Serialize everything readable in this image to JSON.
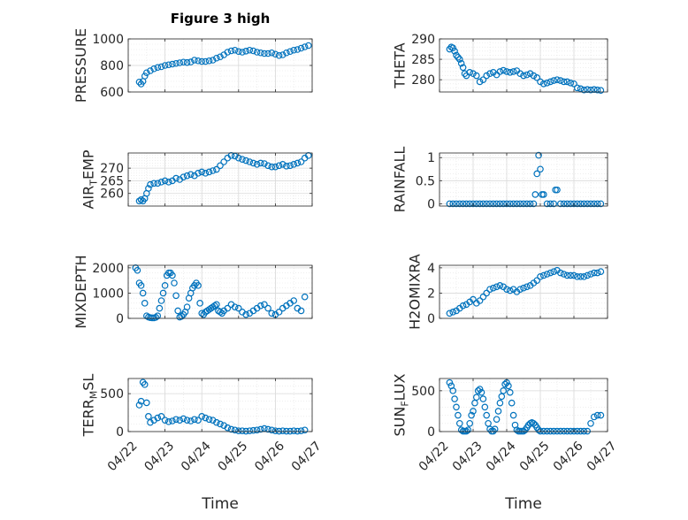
{
  "figure": {
    "title": "Figure 3 high"
  },
  "colors": {
    "marker": "#0072BD",
    "axis": "#262626",
    "grid": "#d9d9d9",
    "background": "#ffffff"
  },
  "x_ticks": [
    0,
    1,
    2,
    3,
    4,
    5
  ],
  "x_tick_labels": [
    "04/22",
    "04/23",
    "04/24",
    "04/25",
    "04/26",
    "04/27"
  ],
  "chart_data": [
    {
      "type": "scatter",
      "ylabel": "PRESSURE",
      "ylabel_sub": "",
      "ylabel_tail": "",
      "xlabel": "",
      "show_xtick_labels": false,
      "grid": true,
      "xlim": [
        0,
        5
      ],
      "ylim": [
        600,
        1000
      ],
      "yticks": [
        600,
        800,
        1000
      ],
      "ytick_labels": [
        "600",
        "800",
        "1000"
      ],
      "x": [
        0.3,
        0.35,
        0.4,
        0.45,
        0.5,
        0.6,
        0.7,
        0.8,
        0.9,
        1.0,
        1.1,
        1.2,
        1.3,
        1.4,
        1.5,
        1.6,
        1.7,
        1.8,
        1.9,
        2.0,
        2.1,
        2.2,
        2.3,
        2.4,
        2.5,
        2.6,
        2.7,
        2.8,
        2.9,
        3.0,
        3.1,
        3.2,
        3.3,
        3.4,
        3.5,
        3.6,
        3.7,
        3.8,
        3.9,
        4.0,
        4.1,
        4.2,
        4.3,
        4.4,
        4.5,
        4.6,
        4.7,
        4.8,
        4.9
      ],
      "y": [
        675,
        660,
        680,
        720,
        745,
        760,
        775,
        785,
        790,
        800,
        805,
        810,
        815,
        820,
        825,
        822,
        826,
        840,
        835,
        830,
        830,
        835,
        840,
        855,
        865,
        880,
        900,
        910,
        915,
        905,
        900,
        908,
        915,
        910,
        900,
        895,
        890,
        890,
        895,
        885,
        875,
        880,
        895,
        905,
        915,
        920,
        930,
        940,
        950
      ]
    },
    {
      "type": "scatter",
      "ylabel": "THETA",
      "ylabel_sub": "",
      "ylabel_tail": "",
      "xlabel": "",
      "show_xtick_labels": false,
      "grid": true,
      "xlim": [
        0,
        5
      ],
      "ylim": [
        277,
        290
      ],
      "yticks": [
        280,
        285,
        290
      ],
      "ytick_labels": [
        "280",
        "285",
        "290"
      ],
      "x": [
        0.3,
        0.35,
        0.4,
        0.45,
        0.5,
        0.55,
        0.6,
        0.65,
        0.7,
        0.75,
        0.8,
        0.9,
        1.0,
        1.1,
        1.2,
        1.3,
        1.4,
        1.5,
        1.6,
        1.7,
        1.8,
        1.9,
        2.0,
        2.1,
        2.2,
        2.3,
        2.4,
        2.5,
        2.6,
        2.7,
        2.8,
        2.9,
        3.0,
        3.1,
        3.2,
        3.3,
        3.4,
        3.5,
        3.6,
        3.7,
        3.8,
        3.9,
        4.0,
        4.1,
        4.2,
        4.3,
        4.4,
        4.5,
        4.6,
        4.7,
        4.8
      ],
      "y": [
        287.5,
        288.0,
        287.8,
        287.0,
        286.0,
        285.5,
        285.0,
        284.0,
        283.0,
        281.5,
        281.0,
        281.8,
        281.5,
        281.0,
        279.5,
        280.0,
        281.0,
        281.5,
        281.8,
        281.2,
        282.0,
        282.3,
        282.0,
        281.8,
        282.0,
        282.2,
        281.5,
        281.0,
        281.2,
        281.5,
        281.0,
        280.5,
        279.5,
        279.0,
        279.2,
        279.5,
        279.8,
        280.0,
        279.8,
        279.5,
        279.5,
        279.2,
        279.0,
        278.0,
        277.8,
        277.5,
        277.6,
        277.5,
        277.6,
        277.5,
        277.4
      ]
    },
    {
      "type": "scatter",
      "ylabel": "AIR",
      "ylabel_sub": "T",
      "ylabel_tail": "EMP",
      "xlabel": "",
      "show_xtick_labels": false,
      "grid": true,
      "xlim": [
        0,
        5
      ],
      "ylim": [
        255,
        276
      ],
      "yticks": [
        260,
        265,
        270
      ],
      "ytick_labels": [
        "260",
        "265",
        "270"
      ],
      "x": [
        0.3,
        0.35,
        0.4,
        0.45,
        0.5,
        0.55,
        0.6,
        0.7,
        0.8,
        0.9,
        1.0,
        1.1,
        1.2,
        1.3,
        1.4,
        1.5,
        1.6,
        1.7,
        1.8,
        1.9,
        2.0,
        2.1,
        2.2,
        2.3,
        2.4,
        2.5,
        2.6,
        2.7,
        2.8,
        2.9,
        3.0,
        3.1,
        3.2,
        3.3,
        3.4,
        3.5,
        3.6,
        3.7,
        3.8,
        3.9,
        4.0,
        4.1,
        4.2,
        4.3,
        4.4,
        4.5,
        4.6,
        4.7,
        4.8,
        4.9
      ],
      "y": [
        257,
        257.5,
        257,
        258,
        260,
        262,
        263.5,
        264,
        264,
        264.5,
        265,
        264.5,
        265,
        266,
        265.5,
        266.5,
        267,
        267.5,
        267,
        268,
        268.5,
        268,
        268.5,
        269,
        269.5,
        271,
        272.5,
        274,
        275,
        274.8,
        274,
        273.5,
        273,
        272.5,
        272,
        271.5,
        272,
        271.8,
        271,
        270.5,
        270.5,
        271,
        271.5,
        270.8,
        271,
        271.5,
        272,
        272.5,
        274,
        275
      ]
    },
    {
      "type": "scatter",
      "ylabel": "RAINFALL",
      "ylabel_sub": "",
      "ylabel_tail": "",
      "xlabel": "",
      "show_xtick_labels": false,
      "grid": true,
      "xlim": [
        0,
        5
      ],
      "ylim": [
        -0.05,
        1.1
      ],
      "yticks": [
        0,
        0.5,
        1
      ],
      "ytick_labels": [
        "0",
        "0.5",
        "1"
      ],
      "x": [
        0.3,
        0.4,
        0.5,
        0.6,
        0.7,
        0.8,
        0.9,
        1.0,
        1.1,
        1.2,
        1.3,
        1.4,
        1.5,
        1.6,
        1.7,
        1.8,
        1.9,
        2.0,
        2.1,
        2.2,
        2.3,
        2.4,
        2.5,
        2.6,
        2.7,
        2.8,
        2.85,
        2.9,
        2.95,
        3.0,
        3.05,
        3.1,
        3.2,
        3.3,
        3.4,
        3.45,
        3.5,
        3.6,
        3.7,
        3.8,
        3.9,
        4.0,
        4.1,
        4.2,
        4.3,
        4.4,
        4.5,
        4.6,
        4.7,
        4.8
      ],
      "y": [
        0,
        0,
        0,
        0,
        0,
        0,
        0,
        0,
        0,
        0,
        0,
        0,
        0,
        0,
        0,
        0,
        0,
        0,
        0,
        0,
        0,
        0,
        0,
        0,
        0,
        0,
        0.2,
        0.65,
        1.05,
        0.75,
        0.2,
        0.2,
        0,
        0,
        0,
        0.3,
        0.3,
        0,
        0,
        0,
        0,
        0,
        0,
        0,
        0,
        0,
        0,
        0,
        0,
        0
      ]
    },
    {
      "type": "scatter",
      "ylabel": "MIXDEPTH",
      "ylabel_sub": "",
      "ylabel_tail": "",
      "xlabel": "",
      "show_xtick_labels": false,
      "grid": true,
      "xlim": [
        0,
        5
      ],
      "ylim": [
        0,
        2100
      ],
      "yticks": [
        0,
        1000,
        2000
      ],
      "ytick_labels": [
        "0",
        "1000",
        "2000"
      ],
      "x": [
        0.2,
        0.25,
        0.3,
        0.35,
        0.4,
        0.45,
        0.5,
        0.55,
        0.6,
        0.65,
        0.7,
        0.75,
        0.8,
        0.85,
        0.9,
        0.95,
        1.0,
        1.05,
        1.1,
        1.15,
        1.2,
        1.25,
        1.3,
        1.35,
        1.4,
        1.45,
        1.5,
        1.55,
        1.6,
        1.65,
        1.7,
        1.75,
        1.8,
        1.85,
        1.9,
        1.95,
        2.0,
        2.05,
        2.1,
        2.15,
        2.2,
        2.25,
        2.3,
        2.35,
        2.4,
        2.45,
        2.5,
        2.55,
        2.6,
        2.7,
        2.8,
        2.9,
        3.0,
        3.1,
        3.2,
        3.3,
        3.4,
        3.5,
        3.6,
        3.7,
        3.8,
        3.9,
        4.0,
        4.1,
        4.2,
        4.3,
        4.4,
        4.5,
        4.6,
        4.7,
        4.8
      ],
      "y": [
        2000,
        1900,
        1400,
        1300,
        1000,
        600,
        100,
        50,
        30,
        20,
        20,
        40,
        100,
        400,
        700,
        1000,
        1300,
        1700,
        1800,
        1800,
        1700,
        1400,
        900,
        300,
        50,
        80,
        150,
        250,
        450,
        800,
        1000,
        1200,
        1300,
        1400,
        1300,
        600,
        200,
        150,
        250,
        300,
        350,
        400,
        450,
        500,
        550,
        300,
        250,
        200,
        300,
        400,
        550,
        450,
        400,
        250,
        150,
        200,
        300,
        400,
        500,
        550,
        400,
        200,
        150,
        250,
        400,
        500,
        600,
        700,
        400,
        300,
        850
      ]
    },
    {
      "type": "scatter",
      "ylabel": "H2OMIXRA",
      "ylabel_sub": "",
      "ylabel_tail": "",
      "xlabel": "",
      "show_xtick_labels": false,
      "grid": true,
      "xlim": [
        0,
        5
      ],
      "ylim": [
        0,
        4.2
      ],
      "yticks": [
        0,
        2,
        4
      ],
      "ytick_labels": [
        "0",
        "2",
        "4"
      ],
      "x": [
        0.3,
        0.4,
        0.5,
        0.6,
        0.7,
        0.8,
        0.9,
        1.0,
        1.1,
        1.2,
        1.3,
        1.4,
        1.5,
        1.6,
        1.7,
        1.8,
        1.9,
        2.0,
        2.1,
        2.2,
        2.3,
        2.4,
        2.5,
        2.6,
        2.7,
        2.8,
        2.9,
        3.0,
        3.1,
        3.2,
        3.3,
        3.4,
        3.5,
        3.6,
        3.7,
        3.8,
        3.9,
        4.0,
        4.1,
        4.2,
        4.3,
        4.4,
        4.5,
        4.6,
        4.7,
        4.8
      ],
      "y": [
        0.4,
        0.5,
        0.6,
        0.8,
        1.0,
        1.1,
        1.3,
        1.5,
        1.2,
        1.4,
        1.7,
        2.0,
        2.3,
        2.4,
        2.5,
        2.6,
        2.5,
        2.3,
        2.2,
        2.3,
        2.1,
        2.3,
        2.4,
        2.5,
        2.6,
        2.8,
        3.0,
        3.3,
        3.4,
        3.5,
        3.6,
        3.7,
        3.8,
        3.6,
        3.5,
        3.4,
        3.4,
        3.4,
        3.3,
        3.3,
        3.3,
        3.4,
        3.5,
        3.6,
        3.6,
        3.7
      ]
    },
    {
      "type": "scatter",
      "ylabel": "TERR",
      "ylabel_sub": "M",
      "ylabel_tail": "SL",
      "xlabel": "Time",
      "show_xtick_labels": true,
      "grid": true,
      "xlim": [
        0,
        5
      ],
      "ylim": [
        0,
        700
      ],
      "yticks": [
        0,
        500
      ],
      "ytick_labels": [
        "0",
        "500"
      ],
      "x": [
        0.3,
        0.35,
        0.4,
        0.45,
        0.5,
        0.55,
        0.6,
        0.7,
        0.8,
        0.9,
        1.0,
        1.1,
        1.2,
        1.3,
        1.4,
        1.5,
        1.6,
        1.7,
        1.8,
        1.9,
        2.0,
        2.1,
        2.2,
        2.3,
        2.4,
        2.5,
        2.6,
        2.7,
        2.8,
        2.9,
        3.0,
        3.1,
        3.2,
        3.3,
        3.4,
        3.5,
        3.6,
        3.7,
        3.8,
        3.9,
        4.0,
        4.1,
        4.2,
        4.3,
        4.4,
        4.5,
        4.6,
        4.7,
        4.8
      ],
      "y": [
        350,
        400,
        650,
        620,
        380,
        200,
        120,
        150,
        180,
        200,
        150,
        130,
        140,
        160,
        150,
        170,
        150,
        140,
        160,
        150,
        200,
        180,
        160,
        150,
        120,
        100,
        80,
        50,
        30,
        20,
        10,
        10,
        5,
        10,
        15,
        20,
        30,
        40,
        30,
        20,
        10,
        5,
        10,
        5,
        5,
        10,
        5,
        10,
        20
      ]
    },
    {
      "type": "scatter",
      "ylabel": "SUN",
      "ylabel_sub": "F",
      "ylabel_tail": "LUX",
      "xlabel": "Time",
      "show_xtick_labels": true,
      "grid": true,
      "xlim": [
        0,
        5
      ],
      "ylim": [
        0,
        650
      ],
      "yticks": [
        0,
        500
      ],
      "ytick_labels": [
        "0",
        "500"
      ],
      "x": [
        0.3,
        0.35,
        0.4,
        0.45,
        0.5,
        0.55,
        0.6,
        0.65,
        0.7,
        0.75,
        0.8,
        0.85,
        0.9,
        0.95,
        1.0,
        1.05,
        1.1,
        1.15,
        1.2,
        1.25,
        1.3,
        1.35,
        1.4,
        1.45,
        1.5,
        1.55,
        1.6,
        1.65,
        1.7,
        1.75,
        1.8,
        1.85,
        1.9,
        1.95,
        2.0,
        2.05,
        2.1,
        2.15,
        2.2,
        2.25,
        2.3,
        2.35,
        2.4,
        2.45,
        2.5,
        2.55,
        2.6,
        2.65,
        2.7,
        2.75,
        2.8,
        2.85,
        2.9,
        2.95,
        3.0,
        3.1,
        3.2,
        3.3,
        3.4,
        3.5,
        3.6,
        3.7,
        3.8,
        3.9,
        4.0,
        4.1,
        4.2,
        4.3,
        4.4,
        4.5,
        4.6,
        4.7,
        4.8
      ],
      "y": [
        600,
        560,
        500,
        400,
        300,
        200,
        100,
        20,
        5,
        5,
        5,
        20,
        100,
        200,
        250,
        350,
        420,
        500,
        520,
        480,
        400,
        300,
        200,
        100,
        30,
        5,
        5,
        30,
        150,
        250,
        350,
        430,
        500,
        580,
        600,
        560,
        480,
        350,
        200,
        80,
        20,
        5,
        5,
        5,
        5,
        20,
        50,
        80,
        100,
        110,
        100,
        80,
        50,
        20,
        5,
        5,
        5,
        5,
        5,
        5,
        5,
        5,
        5,
        5,
        5,
        5,
        5,
        5,
        5,
        100,
        180,
        200,
        200
      ]
    }
  ]
}
